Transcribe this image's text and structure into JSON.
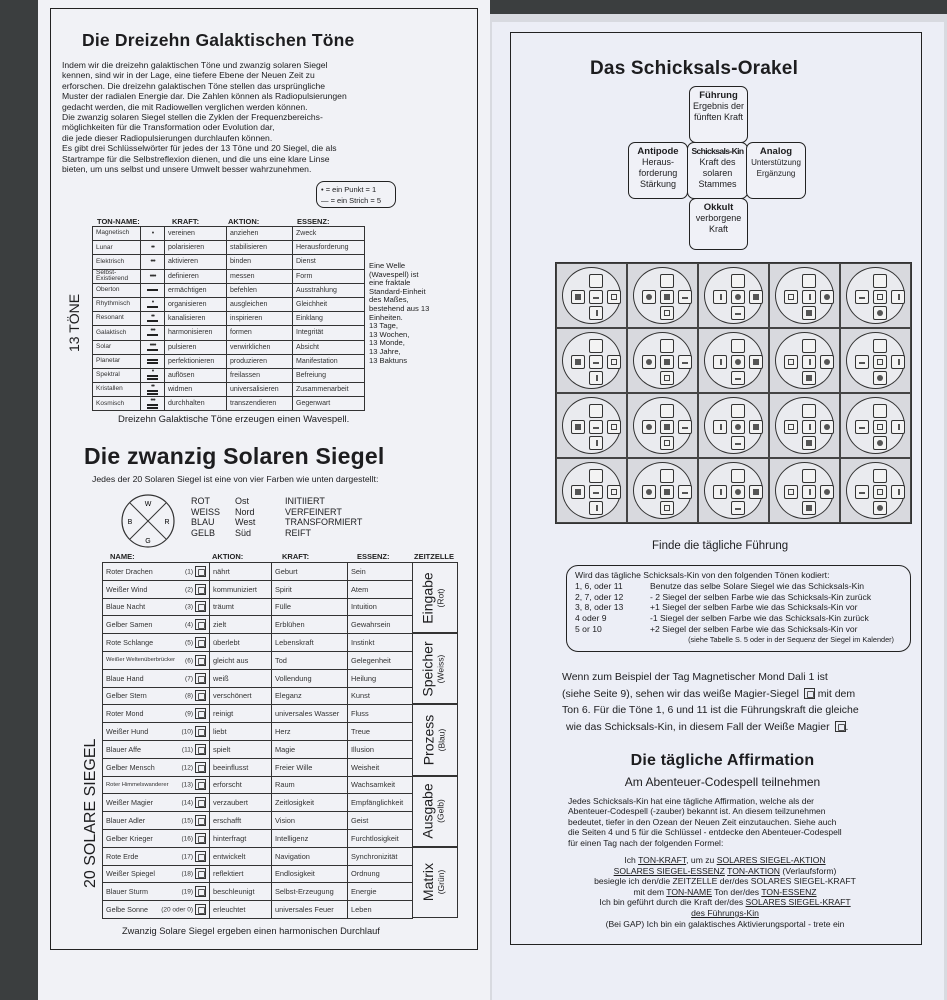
{
  "left": {
    "title": "Die Dreizehn Galaktischen Töne",
    "intro": [
      "Indem wir die dreizehn galaktischen Töne und zwanzig solaren Siegel",
      "kennen, sind wir in der Lage, eine tiefere Ebene der Neuen Zeit zu",
      "erforschen. Die dreizehn galaktischen Töne stellen das ursprüngliche",
      "Muster der radialen Energie dar. Die Zahlen können als Radiopulsierungen",
      "gedacht werden, die mit Radiowellen verglichen werden können.",
      "Die zwanzig solaren Siegel stellen die Zyklen der Frequenzbereichs-",
      "möglichkeiten für die Transformation oder Evolution dar,",
      "die jede dieser Radiopulsierungen durchlaufen können.",
      "Es gibt drei Schlüsselwörter für jedes der 13 Töne und 20 Siegel, die als",
      "Startrampe für die Selbstreflexion dienen, und die uns eine klare Linse",
      "bieten, um uns selbst und unsere Umwelt besser wahrzunehmen."
    ],
    "legend": {
      "dot": "= ein Punkt = 1",
      "bar": "= ein Strich = 5"
    },
    "tones_label": "13 TÖNE",
    "tone_headers": [
      "TON-NAME:",
      "KRAFT:",
      "AKTION:",
      "ESSENZ:"
    ],
    "tones": [
      {
        "name": "Magnetisch",
        "value": 1,
        "kraft": "vereinen",
        "aktion": "anziehen",
        "essenz": "Zweck"
      },
      {
        "name": "Lunar",
        "value": 2,
        "kraft": "polarisieren",
        "aktion": "stabilisieren",
        "essenz": "Herausforderung"
      },
      {
        "name": "Elektrisch",
        "value": 3,
        "kraft": "aktivieren",
        "aktion": "binden",
        "essenz": "Dienst"
      },
      {
        "name": "Selbst-Existierend",
        "value": 4,
        "kraft": "definieren",
        "aktion": "messen",
        "essenz": "Form"
      },
      {
        "name": "Oberton",
        "value": 5,
        "kraft": "ermächtigen",
        "aktion": "befehlen",
        "essenz": "Ausstrahlung"
      },
      {
        "name": "Rhythmisch",
        "value": 6,
        "kraft": "organisieren",
        "aktion": "ausgleichen",
        "essenz": "Gleichheit"
      },
      {
        "name": "Resonant",
        "value": 7,
        "kraft": "kanalisieren",
        "aktion": "inspirieren",
        "essenz": "Einklang"
      },
      {
        "name": "Galaktisch",
        "value": 8,
        "kraft": "harmonisieren",
        "aktion": "formen",
        "essenz": "Integrität"
      },
      {
        "name": "Solar",
        "value": 9,
        "kraft": "pulsieren",
        "aktion": "verwirklichen",
        "essenz": "Absicht"
      },
      {
        "name": "Planetar",
        "value": 10,
        "kraft": "perfektionieren",
        "aktion": "produzieren",
        "essenz": "Manifestation"
      },
      {
        "name": "Spektral",
        "value": 11,
        "kraft": "auflösen",
        "aktion": "freilassen",
        "essenz": "Befreiung"
      },
      {
        "name": "Kristallen",
        "value": 12,
        "kraft": "widmen",
        "aktion": "universalisieren",
        "essenz": "Zusammenarbeit"
      },
      {
        "name": "Kosmisch",
        "value": 13,
        "kraft": "durchhalten",
        "aktion": "transzendieren",
        "essenz": "Gegenwart"
      }
    ],
    "wavespell_note": [
      "Eine Welle",
      "(Wavespell) ist",
      "eine fraktale",
      "Standard-Einheit",
      "des Maßes,",
      "bestehend aus 13",
      "Einheiten.",
      "13 Tage,",
      "13 Wochen,",
      "13 Monde,",
      "13 Jahre,",
      "13 Baktuns"
    ],
    "tones_caption": "Dreizehn Galaktische Töne erzeugen einen Wavespell.",
    "seals_title": "Die zwanzig Solaren Siegel",
    "seals_subtitle": "Jedes der 20 Solaren Siegel ist eine von vier Farben wie unten dargestellt:",
    "compass": {
      "n": "W",
      "e": "R",
      "w": "B",
      "s": "G"
    },
    "colors": [
      [
        "ROT",
        "Ost",
        "INITIIERT"
      ],
      [
        "WEISS",
        "Nord",
        "VERFEINERT"
      ],
      [
        "BLAU",
        "West",
        "TRANSFORMIERT"
      ],
      [
        "GELB",
        "Süd",
        "REIFT"
      ]
    ],
    "seals_label": "20 SOLARE SIEGEL",
    "seal_headers": [
      "NAME:",
      "AKTION:",
      "KRAFT:",
      "ESSENZ:",
      "ZEITZELLE"
    ],
    "seals": [
      {
        "name": "Roter Drachen",
        "num": "(1)",
        "aktion": "nährt",
        "kraft": "Geburt",
        "essenz": "Sein"
      },
      {
        "name": "Weißer Wind",
        "num": "(2)",
        "aktion": "kommuniziert",
        "kraft": "Spirit",
        "essenz": "Atem"
      },
      {
        "name": "Blaue Nacht",
        "num": "(3)",
        "aktion": "träumt",
        "kraft": "Fülle",
        "essenz": "Intuition"
      },
      {
        "name": "Gelber Samen",
        "num": "(4)",
        "aktion": "zielt",
        "kraft": "Erblühen",
        "essenz": "Gewahrsein"
      },
      {
        "name": "Rote Schlange",
        "num": "(5)",
        "aktion": "überlebt",
        "kraft": "Lebenskraft",
        "essenz": "Instinkt"
      },
      {
        "name": "Weißer Weltenüberbrücker",
        "num": "(6)",
        "aktion": "gleicht aus",
        "kraft": "Tod",
        "essenz": "Gelegenheit"
      },
      {
        "name": "Blaue Hand",
        "num": "(7)",
        "aktion": "weiß",
        "kraft": "Vollendung",
        "essenz": "Heilung"
      },
      {
        "name": "Gelber Stern",
        "num": "(8)",
        "aktion": "verschönert",
        "kraft": "Eleganz",
        "essenz": "Kunst"
      },
      {
        "name": "Roter Mond",
        "num": "(9)",
        "aktion": "reinigt",
        "kraft": "universales Wasser",
        "essenz": "Fluss"
      },
      {
        "name": "Weißer Hund",
        "num": "(10)",
        "aktion": "liebt",
        "kraft": "Herz",
        "essenz": "Treue"
      },
      {
        "name": "Blauer Affe",
        "num": "(11)",
        "aktion": "spielt",
        "kraft": "Magie",
        "essenz": "Illusion"
      },
      {
        "name": "Gelber Mensch",
        "num": "(12)",
        "aktion": "beeinflusst",
        "kraft": "Freier Wille",
        "essenz": "Weisheit"
      },
      {
        "name": "Roter Himmelswanderer",
        "num": "(13)",
        "aktion": "erforscht",
        "kraft": "Raum",
        "essenz": "Wachsamkeit"
      },
      {
        "name": "Weißer Magier",
        "num": "(14)",
        "aktion": "verzaubert",
        "kraft": "Zeitlosigkeit",
        "essenz": "Empfänglichkeit"
      },
      {
        "name": "Blauer Adler",
        "num": "(15)",
        "aktion": "erschafft",
        "kraft": "Vision",
        "essenz": "Geist"
      },
      {
        "name": "Gelber Krieger",
        "num": "(16)",
        "aktion": "hinterfragt",
        "kraft": "Intelligenz",
        "essenz": "Furchtlosigkeit"
      },
      {
        "name": "Rote Erde",
        "num": "(17)",
        "aktion": "entwickelt",
        "kraft": "Navigation",
        "essenz": "Synchronizität"
      },
      {
        "name": "Weißer Spiegel",
        "num": "(18)",
        "aktion": "reflektiert",
        "kraft": "Endlosigkeit",
        "essenz": "Ordnung"
      },
      {
        "name": "Blauer Sturm",
        "num": "(19)",
        "aktion": "beschleunigt",
        "kraft": "Selbst-Erzeugung",
        "essenz": "Energie"
      },
      {
        "name": "Gelbe Sonne",
        "num": "(20 oder 0)",
        "aktion": "erleuchtet",
        "kraft": "universales Feuer",
        "essenz": "Leben"
      }
    ],
    "zeitzellen": [
      {
        "name": "Eingabe",
        "color": "(Rot)"
      },
      {
        "name": "Speicher",
        "color": "(Weiss)"
      },
      {
        "name": "Prozess",
        "color": "(Blau)"
      },
      {
        "name": "Ausgabe",
        "color": "(Gelb)"
      },
      {
        "name": "Matrix",
        "color": "(Grün)"
      }
    ],
    "seals_caption": "Zwanzig Solare Siegel ergeben einen harmonischen Durchlauf"
  },
  "right": {
    "title": "Das Schicksals-Orakel",
    "oracle": {
      "top": {
        "title": "Führung",
        "text": "Ergebnis der fünften Kraft"
      },
      "left": {
        "title": "Antipode",
        "text": "Heraus-forderung Stärkung"
      },
      "center": {
        "title": "Schicksals-Kin",
        "text": "Kraft des solaren Stammes"
      },
      "right": {
        "title": "Analog",
        "text": "Unterstützung Ergänzung"
      },
      "bottom": {
        "title": "Okkult",
        "text": "verborgene Kraft"
      }
    },
    "guide_heading": "Finde die tägliche Führung",
    "code_box": {
      "intro": "Wird das tägliche Schicksals-Kin von den folgenden Tönen kodiert:",
      "rows": [
        [
          "1, 6, oder 11",
          "Benutze das selbe Solare Siegel wie das Schicksals-Kin"
        ],
        [
          "2, 7, oder 12",
          "- 2 Siegel der selben Farbe wie das Schicksals-Kin zurück"
        ],
        [
          "3, 8, oder 13",
          "+1 Siegel der selben Farbe wie das Schicksals-Kin vor"
        ],
        [
          "4 oder 9",
          "-1 Siegel der selben Farbe wie das Schicksals-Kin zurück"
        ],
        [
          "5 or 10",
          "+2 Siegel der selben Farbe wie das Schicksals-Kin vor"
        ]
      ],
      "note": "(siehe Tabelle S. 5 oder in der Sequenz der Siegel im Kalender)"
    },
    "example": [
      "Wenn zum Beispiel der Tag Magnetischer Mond Dali 1 ist",
      "(siehe Seite 9), sehen wir das weiße Magier-Siegel",
      "mit dem",
      "Ton 6. Für die Töne 1, 6 und 11 ist die Führungskraft die gleiche",
      "wie das Schicksals-Kin, in diesem Fall der Weiße Magier",
      "."
    ],
    "affirmation_title": "Die tägliche Affirmation",
    "affirmation_subtitle": "Am Abenteuer-Codespell teilnehmen",
    "affirmation_text": [
      "Jedes Schicksals-Kin hat eine tägliche Affirmation, welche als der",
      "Abenteuer-Codespell (-zauber) bekannt ist. An diesem teilzunehmen",
      "bedeutet, tiefer in den Ozean der Neuen Zeit einzutauchen. Siehe auch",
      "die Seiten 4 und 5 für die Schlüssel - entdecke den Abenteuer-Codespell",
      "für einen Tag nach der folgenden Formel:"
    ],
    "formula": {
      "l1": [
        "Ich ",
        "TON-KRAFT",
        ", um zu ",
        "SOLARES SIEGEL-AKTION"
      ],
      "l2": [
        "SOLARES SIEGEL-ESSENZ",
        " ",
        "TON-AKTION",
        " (Verlaufsform)"
      ],
      "l3": "besiegle ich den/die ZEITZELLE der/des SOLARES SIEGEL-KRAFT",
      "l4": [
        "mit dem ",
        "TON-NAME",
        " Ton der/des ",
        "TON-ESSENZ"
      ],
      "l5": [
        "Ich bin geführt durch die Kraft der/des ",
        "SOLARES SIEGEL-KRAFT"
      ],
      "l6": "des Führungs-Kin",
      "l7": "(Bei GAP) Ich bin ein galaktisches Aktivierungsportal - trete ein"
    }
  }
}
